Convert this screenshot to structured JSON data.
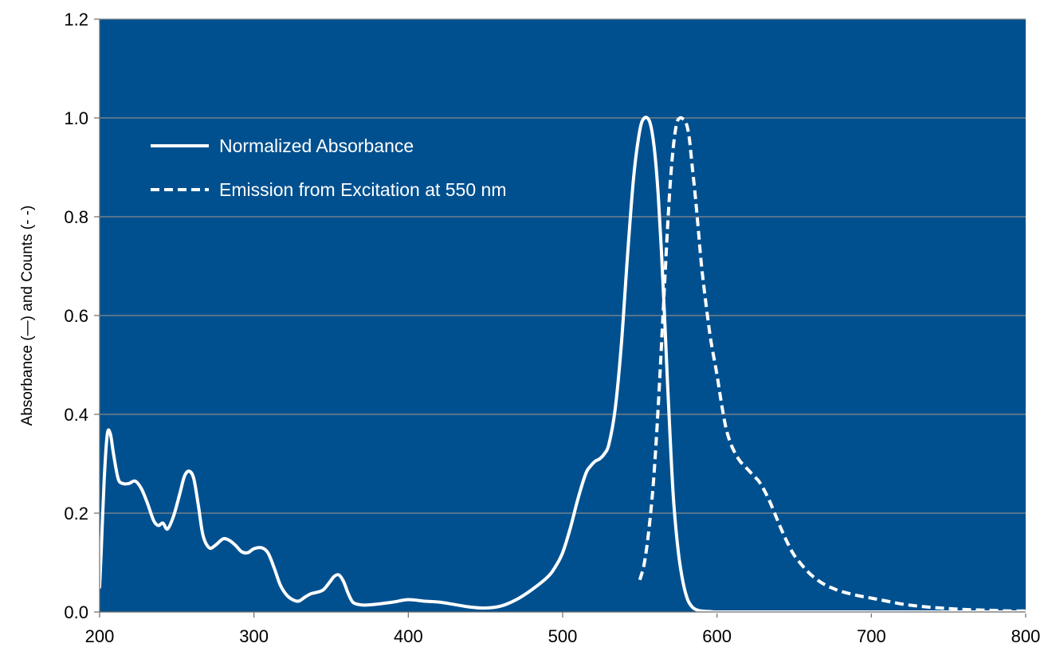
{
  "chart_data": {
    "type": "line",
    "title": "",
    "xlabel": "",
    "ylabel": "Absorbance (—) and Counts (- -)",
    "xlim": [
      200,
      800
    ],
    "ylim": [
      0,
      1.2
    ],
    "x_ticks": [
      "200",
      "300",
      "400",
      "500",
      "600",
      "700",
      "800"
    ],
    "y_ticks": [
      "0.0",
      "0.2",
      "0.4",
      "0.6",
      "0.8",
      "1.0",
      "1.2"
    ],
    "grid": "horizontal",
    "legend_position": "top-left",
    "plot_background": "#00508F",
    "line_color": "#FFFFFF",
    "series": [
      {
        "name": "Normalized Absorbance",
        "style": "solid",
        "x": [
          200,
          201,
          203,
          205,
          207,
          209,
          212,
          215,
          219,
          223,
          227,
          231,
          235,
          238,
          241,
          244,
          248,
          252,
          255,
          258,
          261,
          264,
          267,
          271,
          275,
          280,
          284,
          288,
          292,
          296,
          300,
          305,
          309,
          313,
          317,
          321,
          325,
          329,
          333,
          337,
          341,
          345,
          349,
          352,
          355,
          358,
          361,
          364,
          368,
          372,
          380,
          390,
          400,
          410,
          420,
          430,
          440,
          450,
          460,
          470,
          480,
          490,
          495,
          500,
          505,
          510,
          515,
          518,
          521,
          524,
          527,
          530,
          534,
          538,
          542,
          546,
          550,
          553,
          556,
          558,
          560,
          562,
          564,
          566,
          568,
          570,
          572,
          575,
          578,
          581,
          584,
          587,
          590,
          595,
          600,
          620,
          650,
          700,
          750,
          800
        ],
        "values": [
          0.05,
          0.12,
          0.27,
          0.36,
          0.36,
          0.32,
          0.27,
          0.26,
          0.26,
          0.265,
          0.25,
          0.22,
          0.185,
          0.175,
          0.18,
          0.168,
          0.195,
          0.24,
          0.275,
          0.285,
          0.27,
          0.215,
          0.155,
          0.13,
          0.135,
          0.148,
          0.145,
          0.135,
          0.122,
          0.12,
          0.128,
          0.13,
          0.12,
          0.09,
          0.055,
          0.035,
          0.025,
          0.022,
          0.03,
          0.037,
          0.04,
          0.045,
          0.06,
          0.072,
          0.075,
          0.062,
          0.038,
          0.02,
          0.015,
          0.014,
          0.016,
          0.02,
          0.025,
          0.022,
          0.02,
          0.015,
          0.01,
          0.008,
          0.012,
          0.025,
          0.045,
          0.07,
          0.09,
          0.12,
          0.17,
          0.23,
          0.28,
          0.295,
          0.305,
          0.31,
          0.32,
          0.34,
          0.41,
          0.54,
          0.72,
          0.88,
          0.975,
          1.0,
          0.995,
          0.97,
          0.92,
          0.84,
          0.73,
          0.6,
          0.46,
          0.33,
          0.22,
          0.12,
          0.06,
          0.025,
          0.01,
          0.004,
          0.002,
          0.001,
          0.0,
          0.0,
          0.0,
          0.0,
          0.0,
          0.0
        ]
      },
      {
        "name": "Emission from Excitation at 550 nm",
        "style": "dashed",
        "x": [
          550,
          553,
          556,
          559,
          562,
          565,
          568,
          570,
          572,
          574,
          576,
          578,
          580,
          582,
          584,
          586,
          588,
          590,
          593,
          596,
          600,
          603,
          606,
          609,
          612,
          615,
          618,
          621,
          624,
          627,
          630,
          634,
          638,
          642,
          646,
          650,
          655,
          660,
          665,
          670,
          675,
          680,
          690,
          700,
          710,
          720,
          730,
          740,
          750,
          760,
          770,
          780,
          790,
          800
        ],
        "values": [
          0.065,
          0.1,
          0.17,
          0.27,
          0.42,
          0.6,
          0.78,
          0.88,
          0.95,
          0.99,
          1.0,
          0.998,
          0.99,
          0.96,
          0.9,
          0.84,
          0.77,
          0.7,
          0.62,
          0.55,
          0.48,
          0.42,
          0.37,
          0.34,
          0.32,
          0.305,
          0.295,
          0.285,
          0.275,
          0.265,
          0.25,
          0.225,
          0.195,
          0.165,
          0.138,
          0.115,
          0.095,
          0.078,
          0.065,
          0.055,
          0.048,
          0.042,
          0.034,
          0.028,
          0.022,
          0.016,
          0.012,
          0.009,
          0.007,
          0.005,
          0.004,
          0.003,
          0.002,
          0.002
        ]
      }
    ]
  }
}
